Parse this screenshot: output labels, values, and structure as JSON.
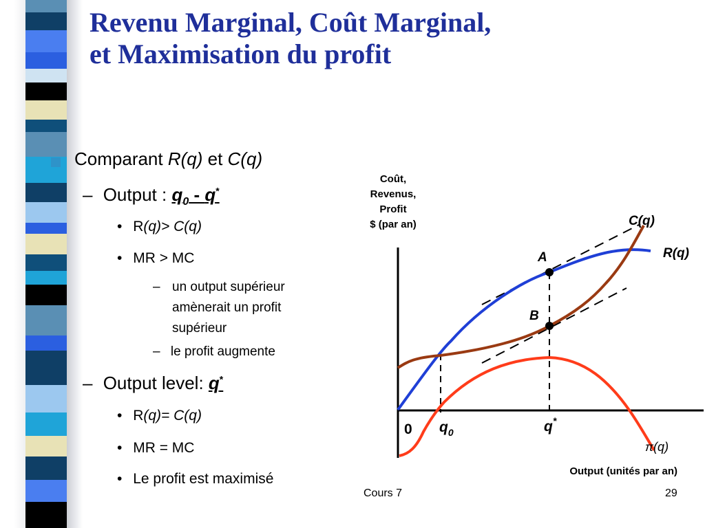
{
  "title": {
    "line1": "Revenu Marginal, Coût Marginal,",
    "line2": "et Maximisation du profit"
  },
  "bullets": {
    "b1": {
      "text": "Comparant ",
      "rq": "R(q)",
      "et": " et ",
      "cq": "C(q)"
    },
    "b1_1": {
      "dash": "–",
      "text": "Output : ",
      "q0": "q",
      "q0_sub": "0",
      "minus": " - ",
      "qs": "q",
      "qs_sup": "*"
    },
    "b1_1_1": {
      "bullet": "•",
      "r": "R",
      "rest": "(q)> C(q)"
    },
    "b1_1_2": {
      "bullet": "•",
      "text": "MR > MC"
    },
    "b1_1_2_1": {
      "dash": "–",
      "lines": [
        "un output supérieur",
        "amènerait un profit",
        "supérieur"
      ]
    },
    "b1_1_2_2": {
      "dash": "–",
      "text": "le profit augmente"
    },
    "b1_2": {
      "dash": "–",
      "text": "Output level: ",
      "qs": "q",
      "qs_sup": "*"
    },
    "b1_2_1": {
      "bullet": "•",
      "r": "R",
      "rest": "(q)= C(q)"
    },
    "b1_2_2": {
      "bullet": "•",
      "text": "MR = MC"
    },
    "b1_2_3": {
      "bullet": "•",
      "text": "Le profit est maximisé"
    }
  },
  "diagram": {
    "y_axis_label": [
      "Coût,",
      "Revenus,",
      "Profit",
      "$ (par an)"
    ],
    "x_axis_label": "Output (unités par an)",
    "origin": "0",
    "curves": {
      "cost": "C(q)",
      "revenue": "R(q)",
      "profit": "π(q)"
    },
    "points": {
      "a": "A",
      "b": "B"
    },
    "ticks": {
      "q0": "q",
      "q0_sub": "0",
      "qstar": "q",
      "qstar_sup": "*"
    },
    "colors": {
      "revenue": "#1f3fd6",
      "cost": "#9a3a12",
      "profit": "#ff3c1a",
      "axis": "#000000"
    }
  },
  "footer": {
    "left": "Cours 7",
    "right": "29"
  },
  "colors": {
    "title": "#1f2f9a",
    "bullet_square": "#2e93c9"
  }
}
